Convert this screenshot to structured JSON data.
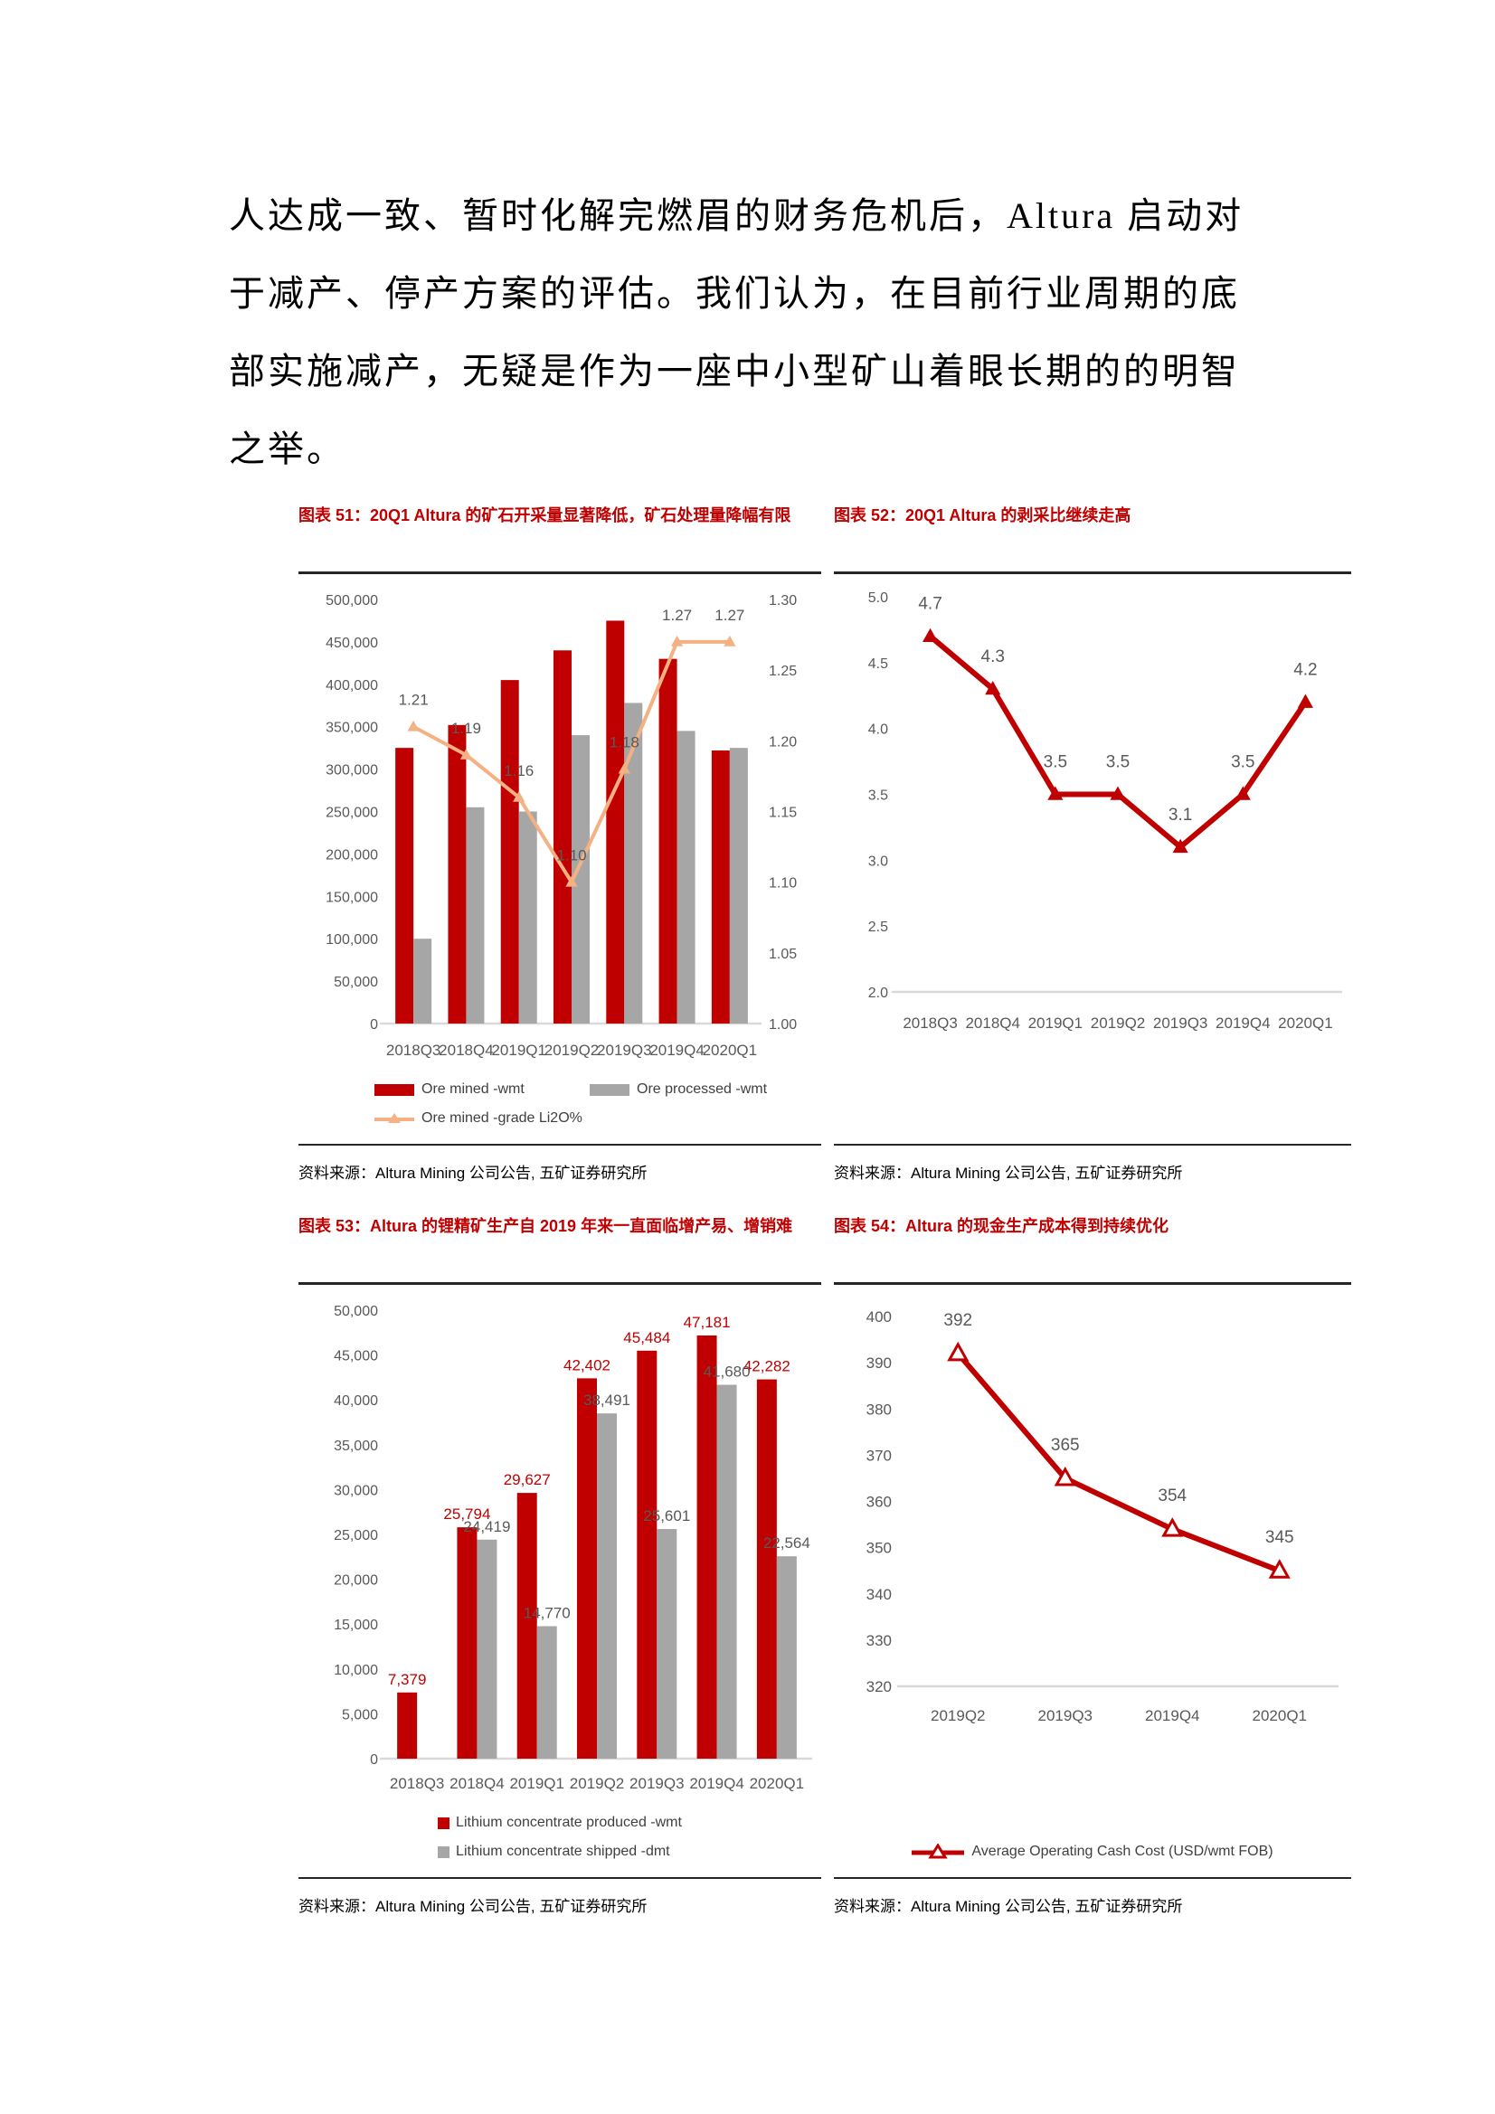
{
  "paragraph": {
    "lines": [
      "人达成一致、暂时化解完燃眉的财务危机后，Altura 启动对",
      "于减产、停产方案的评估。我们认为，在目前行业周期的底",
      "部实施减产，无疑是作为一座中小型矿山着眼长期的的明智",
      "之举。"
    ]
  },
  "colors": {
    "accent_red": "#c00000",
    "bar_gray": "#a6a6a6",
    "line_orange": "#f4b183",
    "axis_gray": "#595959",
    "baseline_gray": "#d9d9d9"
  },
  "chart_data": [
    {
      "id": "figure-51",
      "type": "bar",
      "title": "图表 51：20Q1 Altura 的矿石开采量显著降低，矿石处理量降幅有限",
      "source": "资料来源：Altura Mining 公司公告, 五矿证券研究所",
      "categories": [
        "2018Q3",
        "2018Q4",
        "2019Q1",
        "2019Q2",
        "2019Q3",
        "2019Q4",
        "2020Q1"
      ],
      "left_axis": {
        "min": 0,
        "max": 500000,
        "step": 50000,
        "format": "comma"
      },
      "right_axis": {
        "min": 1.0,
        "max": 1.3,
        "step": 0.05,
        "format": "dp2"
      },
      "grid": false,
      "legend_position": "bottom",
      "bar_series": [
        {
          "name": "Ore mined -wmt",
          "color_key": "accent_red",
          "values": [
            325000,
            352000,
            405000,
            440000,
            475000,
            430000,
            322000
          ]
        },
        {
          "name": "Ore processed -wmt",
          "color_key": "bar_gray",
          "values": [
            100000,
            255000,
            250000,
            340000,
            378000,
            345000,
            325000
          ]
        }
      ],
      "line_series": [
        {
          "name": "Ore mined -grade Li2O%",
          "color_key": "line_orange",
          "axis": "right",
          "marker": "triangle",
          "values": [
            1.21,
            1.19,
            1.16,
            1.1,
            1.18,
            1.27,
            1.27
          ],
          "labels": true,
          "label_format": "dp2"
        }
      ]
    },
    {
      "id": "figure-52",
      "type": "line",
      "title": "图表 52：20Q1 Altura 的剥采比继续走高",
      "source": "资料来源：Altura Mining 公司公告, 五矿证券研究所",
      "categories": [
        "2018Q3",
        "2018Q4",
        "2019Q1",
        "2019Q2",
        "2019Q3",
        "2019Q4",
        "2020Q1"
      ],
      "left_axis": {
        "min": 2.0,
        "max": 5.0,
        "step": 0.5,
        "format": "dp1"
      },
      "grid": false,
      "line_series": [
        {
          "color_key": "accent_red",
          "axis": "left",
          "marker": "triangle",
          "values": [
            4.7,
            4.3,
            3.5,
            3.5,
            3.1,
            3.5,
            4.2
          ],
          "labels": true,
          "label_format": "dp1"
        }
      ]
    },
    {
      "id": "figure-53",
      "type": "bar",
      "title": "图表 53：Altura 的锂精矿生产自 2019 年来一直面临增产易、增销难",
      "source": "资料来源：Altura Mining 公司公告, 五矿证券研究所",
      "categories": [
        "2018Q3",
        "2018Q4",
        "2019Q1",
        "2019Q2",
        "2019Q3",
        "2019Q4",
        "2020Q1"
      ],
      "left_axis": {
        "min": 0,
        "max": 50000,
        "step": 5000,
        "format": "comma"
      },
      "grid": false,
      "legend_position": "bottom",
      "bar_series": [
        {
          "name": "Lithium concentrate produced -wmt",
          "color_key": "accent_red",
          "values": [
            7379,
            25794,
            29627,
            42402,
            45484,
            47181,
            42282
          ],
          "labels": true,
          "label_format": "comma"
        },
        {
          "name": "Lithium concentrate shipped -dmt",
          "color_key": "bar_gray",
          "values": [
            null,
            24419,
            14770,
            38491,
            25601,
            41680,
            22564
          ],
          "labels": true,
          "label_format": "comma"
        }
      ]
    },
    {
      "id": "figure-54",
      "type": "line",
      "title": "图表 54：Altura 的现金生产成本得到持续优化",
      "source": "资料来源：Altura Mining 公司公告, 五矿证券研究所",
      "categories": [
        "2019Q2",
        "2019Q3",
        "2019Q4",
        "2020Q1"
      ],
      "left_axis": {
        "min": 320,
        "max": 400,
        "step": 10,
        "format": "int"
      },
      "grid": false,
      "legend_position": "bottom",
      "line_series": [
        {
          "name": "Average Operating Cash Cost (USD/wmt FOB)",
          "color_key": "accent_red",
          "axis": "left",
          "marker": "triangle-open",
          "values": [
            392,
            365,
            354,
            345
          ],
          "labels": true,
          "label_format": "int"
        }
      ]
    }
  ]
}
